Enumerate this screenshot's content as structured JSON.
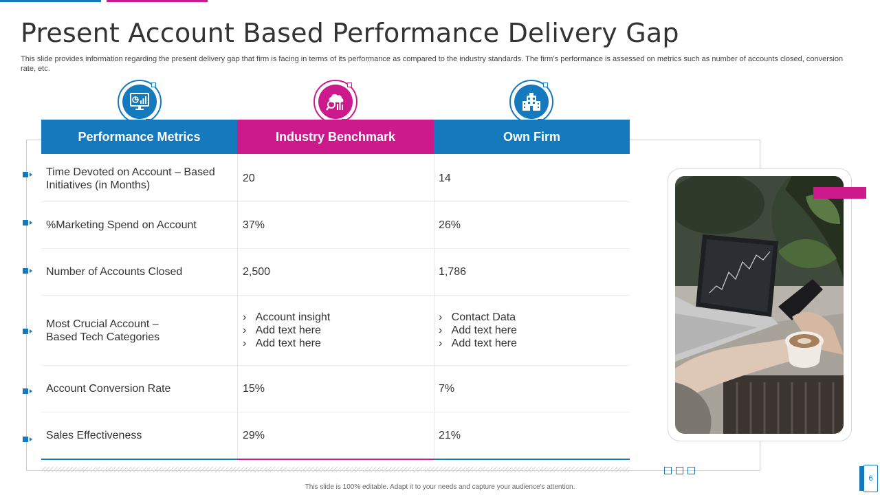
{
  "slide": {
    "title": "Present Account Based Performance Delivery Gap",
    "subtitle": "This slide provides information regarding the present delivery gap that firm is facing in terms of its performance as compared to the industry standards. The firm’s performance is assessed on metrics such as number of accounts closed, conversion rate, etc.",
    "footer": "This slide is 100% editable.  Adapt it to your needs and capture your audience's attention.",
    "page_number": "6"
  },
  "colors": {
    "blue": "#1479bd",
    "pink": "#cc1a8c"
  },
  "table": {
    "headers": [
      {
        "label": "Performance Metrics",
        "icon": "dashboard-monitor-icon"
      },
      {
        "label": "Industry Benchmark",
        "icon": "analytics-magnifier-icon"
      },
      {
        "label": "Own Firm",
        "icon": "building-icon"
      }
    ],
    "rows": [
      {
        "metric": "Time Devoted on Account – Based Initiatives  (in Months)",
        "benchmark": "20",
        "own": "14"
      },
      {
        "metric": "%Marketing Spend on Account",
        "benchmark": "37%",
        "own": "26%"
      },
      {
        "metric": "Number of Accounts Closed",
        "benchmark": "2,500",
        "own": "1,786"
      },
      {
        "metric": "Most Crucial Account – Based Tech Categories",
        "benchmark_list": [
          "Account insight",
          "Add text here",
          "Add text here"
        ],
        "own_list": [
          "Contact Data",
          "Add text here",
          "Add text here"
        ]
      },
      {
        "metric": "Account Conversion Rate",
        "benchmark": "15%",
        "own": "7%"
      },
      {
        "metric": "Sales Effectiveness",
        "benchmark": "29%",
        "own": "21%"
      }
    ]
  },
  "bullet_marker": "›",
  "photo": {
    "subject": "laptop-coffee-photo"
  }
}
